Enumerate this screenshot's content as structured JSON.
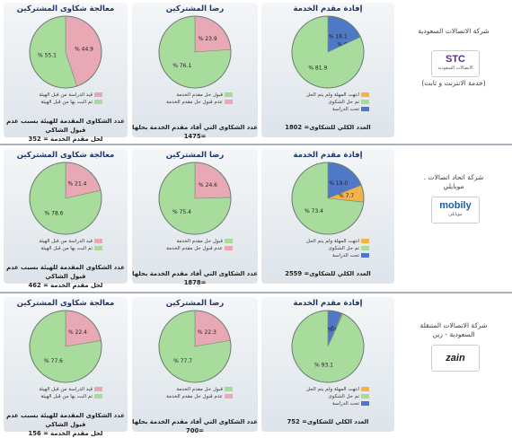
{
  "colors": {
    "green": "#a8dc9c",
    "pink": "#e8a9b4",
    "blue": "#4f79c7",
    "orange": "#f3b24a",
    "title": "#1e3566"
  },
  "companies": [
    {
      "name_lines": [
        "شركة الاتصالات السعودية"
      ],
      "sub": "(خدمة الانترنت و ثابت)",
      "logo_text": "STC",
      "logo_sub": "الاتصالات السعودية",
      "logo": "stc-logo",
      "service": {
        "title": "إفادة مقدم الخدمة",
        "slices": [
          {
            "value": 81.9,
            "label": "% 81.9",
            "color": "green"
          },
          {
            "value": 18.1,
            "label": "% 18.1",
            "color": "blue"
          },
          {
            "value": 0.0,
            "label": "% 0.0",
            "color": "orange"
          }
        ],
        "legend": [
          "انتهت المهلة ولم يتم الحل",
          "تم حل الشكوى",
          "تحت الدراسة"
        ],
        "footer": [
          "العدد الكلي للشكاوى= 1802"
        ]
      },
      "satisfaction": {
        "title": "رضا المشتركين",
        "slices": [
          {
            "value": 76.1,
            "label": "% 76.1",
            "color": "green"
          },
          {
            "value": 23.9,
            "label": "% 23.9",
            "color": "pink"
          }
        ],
        "legend": [
          "قبول حل مقدم الخدمة",
          "عدم قبول حل مقدم الخدمة"
        ],
        "footer": [
          "عدد الشكاوى التي أفاد مقدم الخدمة بحلها =1475"
        ]
      },
      "processing": {
        "title": "معالجة شكاوى المشتركين",
        "slices": [
          {
            "value": 55.1,
            "label": "% 55.1",
            "color": "green"
          },
          {
            "value": 44.9,
            "label": "% 44.9",
            "color": "pink"
          }
        ],
        "legend": [
          "قيد الدراسة من قبل الهيئة",
          "تم البت بها من قبل الهيئة"
        ],
        "footer": [
          "عدد الشكاوى المقدمة للهيئة بسبب عدم قبول الشاكي",
          "لحل مقدم الخدمة = 352"
        ]
      }
    },
    {
      "name_lines": [
        "شركة اتحاد اتصالات .",
        "موبايلي"
      ],
      "sub": "",
      "logo_text": "mobily",
      "logo_sub": "موبايلي",
      "logo": "mobily-logo",
      "service": {
        "title": "إفادة مقدم الخدمة",
        "slices": [
          {
            "value": 73.4,
            "label": "% 73.4",
            "color": "green"
          },
          {
            "value": 19.0,
            "label": "% 19.0",
            "color": "blue"
          },
          {
            "value": 7.7,
            "label": "% 7.7",
            "color": "orange"
          }
        ],
        "legend": [
          "انتهت المهلة ولم يتم الحل",
          "تم حل الشكوى",
          "تحت الدراسة"
        ],
        "footer": [
          "العدد الكلي للشكاوى= 2559"
        ]
      },
      "satisfaction": {
        "title": "رضا المشتركين",
        "slices": [
          {
            "value": 75.4,
            "label": "% 75.4",
            "color": "green"
          },
          {
            "value": 24.6,
            "label": "% 24.6",
            "color": "pink"
          }
        ],
        "legend": [
          "قبول حل مقدم الخدمة",
          "عدم قبول حل مقدم الخدمة"
        ],
        "footer": [
          "عدد الشكاوى التي أفاد مقدم الخدمة بحلها =1878"
        ]
      },
      "processing": {
        "title": "معالجة شكاوى المشتركين",
        "slices": [
          {
            "value": 78.6,
            "label": "% 78.6",
            "color": "green"
          },
          {
            "value": 21.4,
            "label": "% 21.4",
            "color": "pink"
          }
        ],
        "legend": [
          "قيد الدراسة من قبل الهيئة",
          "تم البت بها من قبل الهيئة"
        ],
        "footer": [
          "عدد الشكاوى المقدمة للهيئة بسبب عدم قبول الشاكي",
          "لحل مقدم الخدمة = 462"
        ]
      }
    },
    {
      "name_lines": [
        "شركة الاتصالات المتنقلة",
        "السعودية - زين"
      ],
      "sub": "",
      "logo_text": "zain",
      "logo_sub": "",
      "logo": "zain-logo",
      "service": {
        "title": "إفادة مقدم الخدمة",
        "slices": [
          {
            "value": 93.1,
            "label": "% 93.1",
            "color": "green"
          },
          {
            "value": 6.4,
            "label": "% 6.4",
            "color": "blue"
          },
          {
            "value": 0.5,
            "label": "% 0.5",
            "color": "orange"
          }
        ],
        "legend": [
          "انتهت المهلة ولم يتم الحل",
          "تم حل الشكوى",
          "تحت الدراسة"
        ],
        "footer": [
          "العدد الكلي للشكاوى= 752"
        ]
      },
      "satisfaction": {
        "title": "رضا المشتركين",
        "slices": [
          {
            "value": 77.7,
            "label": "% 77.7",
            "color": "green"
          },
          {
            "value": 22.3,
            "label": "% 22.3",
            "color": "pink"
          }
        ],
        "legend": [
          "قبول حل مقدم الخدمة",
          "عدم قبول حل مقدم الخدمة"
        ],
        "footer": [
          "عدد الشكاوى التي أفاد مقدم الخدمة بحلها =700"
        ]
      },
      "processing": {
        "title": "معالجة شكاوى المشتركين",
        "slices": [
          {
            "value": 77.6,
            "label": "% 77.6",
            "color": "green"
          },
          {
            "value": 22.4,
            "label": "% 22.4",
            "color": "pink"
          }
        ],
        "legend": [
          "قيد الدراسة من قبل الهيئة",
          "تم البت بها من قبل الهيئة"
        ],
        "footer": [
          "عدد الشكاوى المقدمة للهيئة بسبب عدم قبول الشاكي",
          "لحل مقدم الخدمة = 156"
        ]
      }
    }
  ],
  "chart_data": [
    {
      "type": "pie",
      "title": "إفادة مقدم الخدمة",
      "categories": [
        "تم حل الشكوى",
        "تحت الدراسة",
        "انتهت المهلة ولم يتم الحل"
      ],
      "values": [
        81.9,
        18.1,
        0.0
      ]
    },
    {
      "type": "pie",
      "title": "رضا المشتركين",
      "categories": [
        "قبول حل مقدم الخدمة",
        "عدم قبول حل مقدم الخدمة"
      ],
      "values": [
        76.1,
        23.9
      ]
    },
    {
      "type": "pie",
      "title": "معالجة شكاوى المشتركين",
      "categories": [
        "تم البت بها من قبل الهيئة",
        "قيد الدراسة من قبل الهيئة"
      ],
      "values": [
        55.1,
        44.9
      ]
    },
    {
      "type": "pie",
      "title": "إفادة مقدم الخدمة",
      "categories": [
        "تم حل الشكوى",
        "تحت الدراسة",
        "انتهت المهلة ولم يتم الحل"
      ],
      "values": [
        73.4,
        19.0,
        7.7
      ]
    },
    {
      "type": "pie",
      "title": "رضا المشتركين",
      "categories": [
        "قبول حل مقدم الخدمة",
        "عدم قبول حل مقدم الخدمة"
      ],
      "values": [
        75.4,
        24.6
      ]
    },
    {
      "type": "pie",
      "title": "معالجة شكاوى المشتركين",
      "categories": [
        "تم البت بها من قبل الهيئة",
        "قيد الدراسة من قبل الهيئة"
      ],
      "values": [
        78.6,
        21.4
      ]
    },
    {
      "type": "pie",
      "title": "إفادة مقدم الخدمة",
      "categories": [
        "تم حل الشكوى",
        "تحت الدراسة",
        "انتهت المهلة ولم يتم الحل"
      ],
      "values": [
        93.1,
        6.4,
        0.5
      ]
    },
    {
      "type": "pie",
      "title": "رضا المشتركين",
      "categories": [
        "قبول حل مقدم الخدمة",
        "عدم قبول حل مقدم الخدمة"
      ],
      "values": [
        77.7,
        22.3
      ]
    },
    {
      "type": "pie",
      "title": "معالجة شكاوى المشتركين",
      "categories": [
        "تم البت بها من قبل الهيئة",
        "قيد الدراسة من قبل الهيئة"
      ],
      "values": [
        77.6,
        22.4
      ]
    }
  ]
}
